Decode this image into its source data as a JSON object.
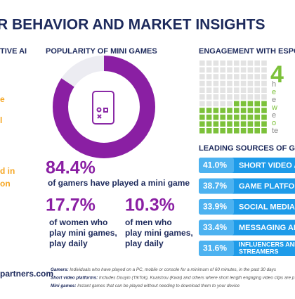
{
  "header": {
    "title": "R BEHAVIOR AND MARKET INSIGHTS"
  },
  "left": {
    "heading": "TIVE AI",
    "fragments": [
      "e",
      "l",
      "d in",
      "on"
    ]
  },
  "popularity": {
    "heading": "POPULARITY OF MINI GAMES",
    "stat": "84.4%",
    "stat_text": "of gamers have played a mini game",
    "women": {
      "stat": "17.7%",
      "lines": [
        "of women who",
        "play mini games,",
        "play daily"
      ]
    },
    "men": {
      "stat": "10.3%",
      "lines": [
        "of men who",
        "play mini games,",
        "play daily"
      ]
    }
  },
  "engagement": {
    "heading": "ENGAGEMENT WITH ESPOR",
    "big": "4",
    "fragments": [
      "h",
      "e",
      "e",
      "w",
      "e",
      "o",
      "te"
    ]
  },
  "sources": {
    "heading": "LEADING SOURCES OF GAM",
    "rows": [
      {
        "value": "41.0%",
        "label": "SHORT VIDEO AI"
      },
      {
        "value": "38.7%",
        "label": "GAME PLATFOR"
      },
      {
        "value": "33.9%",
        "label": "SOCIAL MEDIA"
      },
      {
        "value": "33.4%",
        "label": "MESSAGING AP"
      },
      {
        "value": "31.6%",
        "label": "INFLUENCERS AND\nSTREAMERS"
      }
    ]
  },
  "footer": {
    "site": "partners.com",
    "notes": [
      {
        "term": "Gamers:",
        "text": " Individuals who have played on a PC, mobile or console for a minimum of 60 minutes, in the past 30 days"
      },
      {
        "term": "Short video platforms:",
        "text": " Includes Douyin (TikTok), Kuaishou (Kwai) and others where short length engaging video clips are p"
      },
      {
        "term": "Mini games:",
        "text": " Instant games that can be played without needing to download them to your device"
      }
    ]
  }
}
